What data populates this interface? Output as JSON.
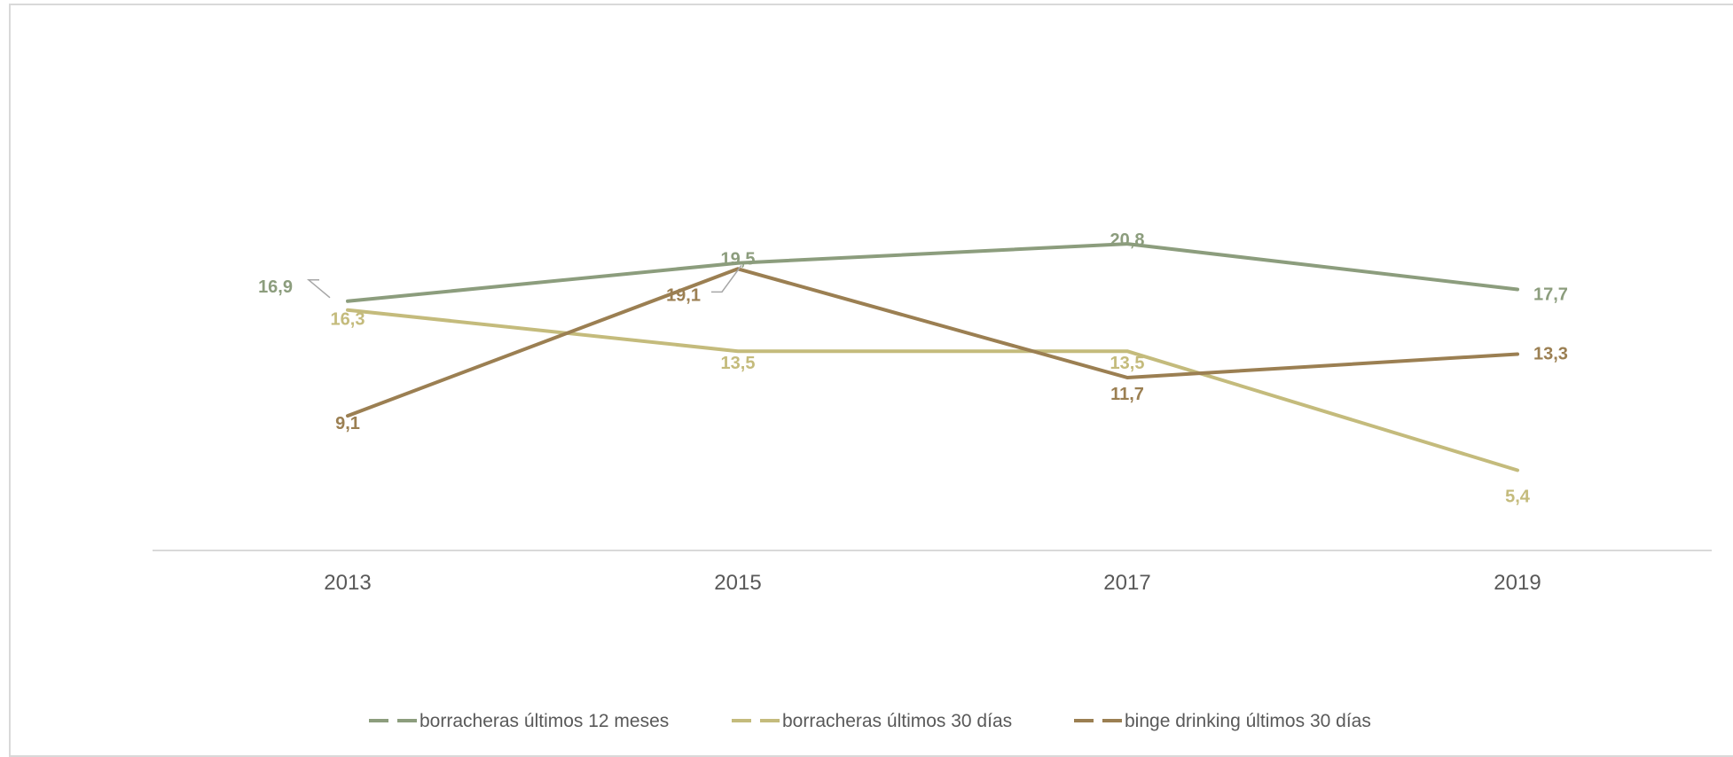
{
  "chart_data": {
    "type": "line",
    "title": "",
    "xlabel": "",
    "ylabel": "",
    "categories": [
      "2013",
      "2015",
      "2017",
      "2019"
    ],
    "ylim": [
      0,
      25
    ],
    "grid": false,
    "legend_position": "bottom",
    "series": [
      {
        "name": "borracheras últimos 12 meses",
        "values": [
          16.9,
          19.5,
          20.8,
          17.7
        ],
        "labels": [
          "16,9",
          "19,5",
          "20,8",
          "17,7"
        ],
        "color": "#8c9d7d"
      },
      {
        "name": "borracheras últimos 30 días",
        "values": [
          16.3,
          13.5,
          13.5,
          5.4
        ],
        "labels": [
          "16,3",
          "13,5",
          "13,5",
          "5,4"
        ],
        "color": "#c4bb7c"
      },
      {
        "name": "binge drinking últimos 30 días",
        "values": [
          9.1,
          19.1,
          11.7,
          13.3
        ],
        "labels": [
          "9,1",
          "19,1",
          "11,7",
          "13,3"
        ],
        "color": "#9b7f52"
      }
    ]
  }
}
